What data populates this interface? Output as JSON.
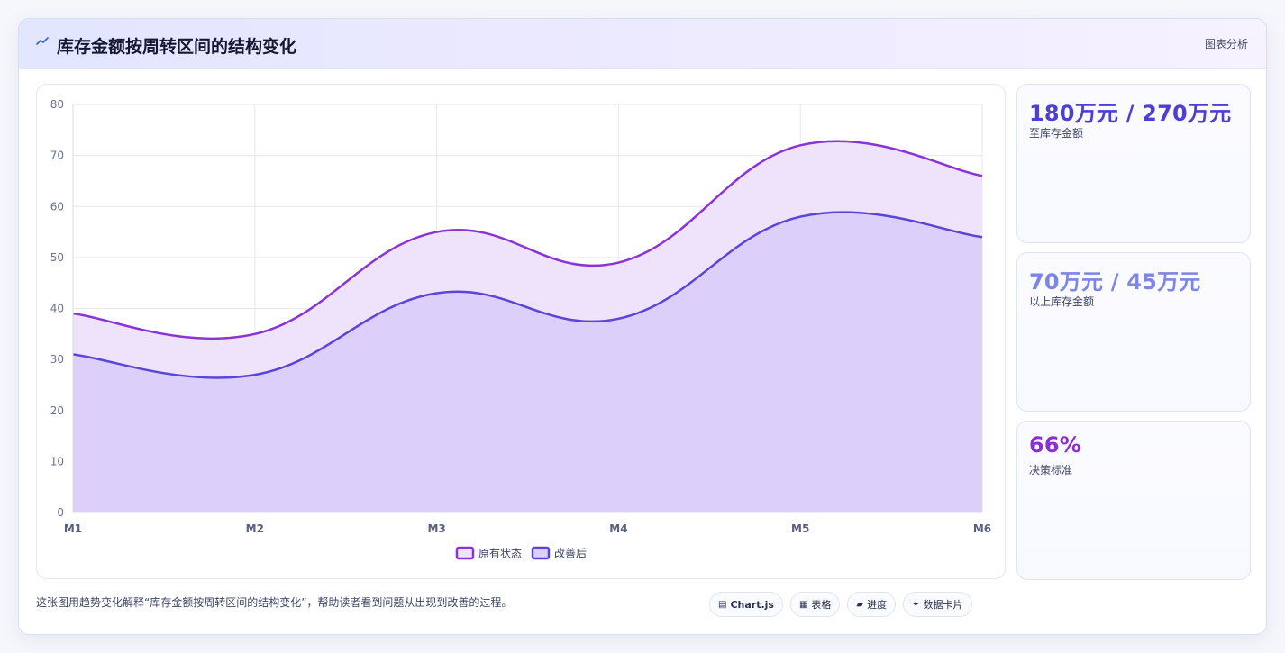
{
  "header": {
    "icon": "trend-line-icon",
    "title": "库存金额按周转区间的结构变化",
    "right_label": "图表分析"
  },
  "chart_data": {
    "type": "area",
    "categories": [
      "M1",
      "M2",
      "M3",
      "M4",
      "M5",
      "M6"
    ],
    "series": [
      {
        "name": "原有状态",
        "values": [
          39,
          35,
          55,
          49,
          72,
          66
        ],
        "color": "#8b34d6",
        "fill": "#efe3fb"
      },
      {
        "name": "改善后",
        "values": [
          31,
          27,
          43,
          38,
          58,
          54
        ],
        "color": "#5b45d6",
        "fill": "#dccffa"
      }
    ],
    "ylim": [
      0,
      80
    ],
    "yticks": [
      0,
      10,
      20,
      30,
      40,
      50,
      60,
      70,
      80
    ],
    "grid": true,
    "legend": "bottom",
    "title": "",
    "xlabel": "",
    "ylabel": ""
  },
  "stats": [
    {
      "value": "180万元 / 270万元",
      "label": "至库存金额",
      "color": "#4d3fd1"
    },
    {
      "value": "70万元 / 45万元",
      "label": "以上库存金额",
      "color": "#7c86e6"
    },
    {
      "value": "66%",
      "label": "决策标准",
      "color": "#8a2fd6"
    }
  ],
  "footer": {
    "text": "这张图用趋势变化解释“库存金额按周转区间的结构变化”，帮助读者看到问题从出现到改善的过程。",
    "tags": [
      {
        "icon": "chart-icon",
        "glyph": "▤",
        "label": "Chart.js"
      },
      {
        "icon": "table-icon",
        "glyph": "▦",
        "label": "表格"
      },
      {
        "icon": "progress-icon",
        "glyph": "▰",
        "label": "进度"
      },
      {
        "icon": "sparkle-icon",
        "glyph": "✦",
        "label": "数据卡片"
      }
    ]
  }
}
